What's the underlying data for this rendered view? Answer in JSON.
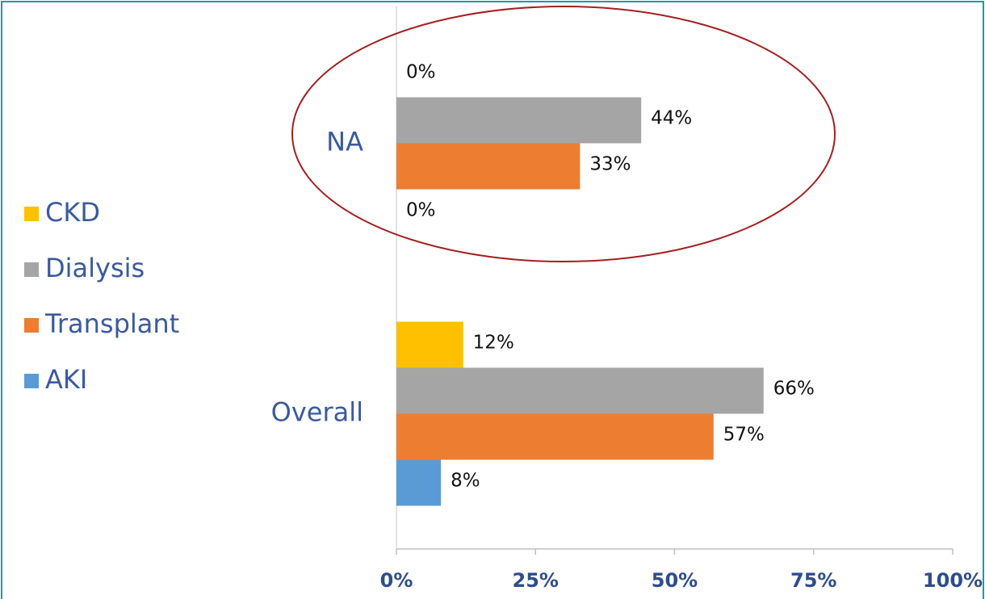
{
  "chart_data": {
    "type": "bar",
    "orientation": "horizontal",
    "categories": [
      "NA",
      "Overall"
    ],
    "series": [
      {
        "name": "CKD",
        "color": "#ffc000",
        "values": [
          0,
          12
        ],
        "value_labels": [
          "0%",
          "12%"
        ]
      },
      {
        "name": "Dialysis",
        "color": "#a5a5a5",
        "values": [
          44,
          66
        ],
        "value_labels": [
          "44%",
          "66%"
        ]
      },
      {
        "name": "Transplant",
        "color": "#ed7d31",
        "values": [
          33,
          57
        ],
        "value_labels": [
          "33%",
          "57%"
        ]
      },
      {
        "name": "AKI",
        "color": "#5b9bd5",
        "values": [
          0,
          8
        ],
        "value_labels": [
          "0%",
          "8%"
        ]
      }
    ],
    "xlim": [
      0,
      100
    ],
    "xticks": [
      {
        "value": 0,
        "label": "0%"
      },
      {
        "value": 25,
        "label": "25%"
      },
      {
        "value": 50,
        "label": "50%"
      },
      {
        "value": 75,
        "label": "75%"
      },
      {
        "value": 100,
        "label": "100%"
      }
    ],
    "legend": "left"
  }
}
